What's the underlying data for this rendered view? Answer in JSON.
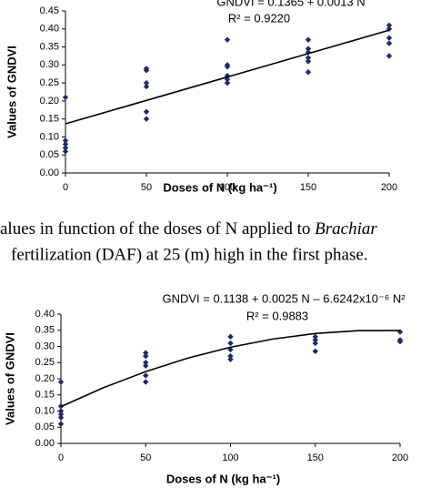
{
  "chart_data": [
    {
      "type": "scatter",
      "annotation": "GNDVI = 0.1365 + 0.0013 N",
      "r2": "R² = 0.9220",
      "ylabel": "Values of GNDVI",
      "xlabel": "Doses of N (kg ha⁻¹)",
      "x": [
        0,
        0,
        0,
        0,
        0,
        50,
        50,
        50,
        50,
        50,
        50,
        100,
        100,
        100,
        100,
        100,
        100,
        150,
        150,
        150,
        150,
        150,
        150,
        200,
        200,
        200,
        200,
        200
      ],
      "values": [
        0.21,
        0.09,
        0.08,
        0.07,
        0.06,
        0.29,
        0.285,
        0.25,
        0.24,
        0.17,
        0.15,
        0.37,
        0.3,
        0.295,
        0.27,
        0.26,
        0.25,
        0.37,
        0.345,
        0.335,
        0.32,
        0.31,
        0.28,
        0.41,
        0.4,
        0.375,
        0.36,
        0.325
      ],
      "color": "#1f2a6b",
      "trendline": {
        "x": [
          0,
          200
        ],
        "values": [
          0.1365,
          0.3965
        ]
      },
      "xlim": [
        0,
        200
      ],
      "xticks": [
        0,
        50,
        100,
        150,
        200
      ],
      "ylim": [
        0,
        0.45
      ],
      "yticks": [
        {
          "value": 0,
          "label": "0.00"
        },
        0.05,
        {
          "value": 0.1,
          "label": "0.10"
        },
        0.15,
        {
          "value": 0.2,
          "label": "0.20"
        },
        0.25,
        {
          "value": 0.3,
          "label": "0.30"
        },
        0.35,
        {
          "value": 0.4,
          "label": "0.40"
        },
        0.45
      ]
    },
    {
      "type": "scatter",
      "annotation": "GNDVI = 0.1138 + 0.0025 N – 6.6242x10⁻⁶ N²",
      "r2": "R² = 0.9883",
      "ylabel": "Values of GNDVI",
      "xlabel": "Doses of N (kg ha⁻¹)",
      "x": [
        0,
        0,
        0,
        0,
        0,
        0,
        50,
        50,
        50,
        50,
        50,
        50,
        100,
        100,
        100,
        100,
        100,
        150,
        150,
        150,
        150,
        200,
        200,
        200
      ],
      "values": [
        0.19,
        0.115,
        0.1,
        0.09,
        0.08,
        0.06,
        0.28,
        0.27,
        0.25,
        0.24,
        0.21,
        0.19,
        0.33,
        0.31,
        0.29,
        0.27,
        0.26,
        0.33,
        0.32,
        0.31,
        0.285,
        0.345,
        0.32,
        0.315
      ],
      "color": "#1f2a6b",
      "trendline": {
        "x": [
          0,
          25,
          50,
          75,
          100,
          125,
          150,
          175,
          200
        ],
        "values": [
          0.1138,
          0.1721,
          0.2222,
          0.264,
          0.2976,
          0.3229,
          0.3399,
          0.3487,
          0.3492
        ]
      },
      "xlim": [
        0,
        200
      ],
      "xticks": [
        0,
        50,
        100,
        150,
        200
      ],
      "ylim": [
        0,
        0.4
      ],
      "yticks": [
        {
          "value": 0,
          "label": "0.00"
        },
        0.05,
        {
          "value": 0.1,
          "label": "0.10"
        },
        0.15,
        {
          "value": 0.2,
          "label": "0.20"
        },
        0.25,
        {
          "value": 0.3,
          "label": "0.30"
        },
        0.35,
        {
          "value": 0.4,
          "label": "0.40"
        }
      ]
    }
  ],
  "caption": {
    "line1": "alues in function of the doses of N applied to ",
    "line1_italic": "Brachiar",
    "line2": "fertilization (DAF) at 25 (m) high in the first phase."
  }
}
